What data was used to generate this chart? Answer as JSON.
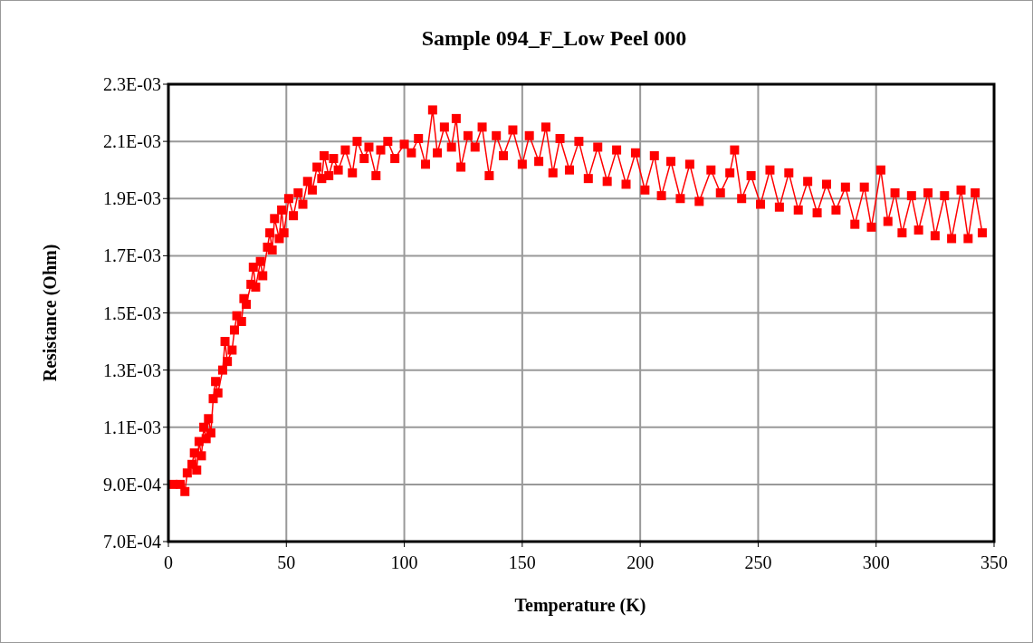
{
  "chart_data": {
    "type": "line",
    "title": "Sample 094_F_Low Peel 000",
    "xlabel": "Temperature (K)",
    "ylabel": "Resistance (Ohm)",
    "x": [
      2,
      5,
      7,
      8,
      10,
      11,
      12,
      13,
      14,
      15,
      16,
      17,
      18,
      19,
      20,
      21,
      23,
      24,
      25,
      27,
      28,
      29,
      31,
      32,
      33,
      35,
      36,
      37,
      39,
      40,
      42,
      43,
      44,
      45,
      47,
      48,
      49,
      51,
      53,
      55,
      57,
      59,
      61,
      63,
      65,
      66,
      68,
      70,
      72,
      75,
      78,
      80,
      83,
      85,
      88,
      90,
      93,
      96,
      100,
      103,
      106,
      109,
      112,
      114,
      117,
      120,
      122,
      124,
      127,
      130,
      133,
      136,
      139,
      142,
      146,
      150,
      153,
      157,
      160,
      163,
      166,
      170,
      174,
      178,
      182,
      186,
      190,
      194,
      198,
      202,
      206,
      209,
      213,
      217,
      221,
      225,
      230,
      234,
      238,
      240,
      243,
      247,
      251,
      255,
      259,
      263,
      267,
      271,
      275,
      279,
      283,
      287,
      291,
      295,
      298,
      302,
      305,
      308,
      311,
      315,
      318,
      322,
      325,
      329,
      332,
      336,
      339,
      342,
      345
    ],
    "series": [
      {
        "color": "#ff0000",
        "values": [
          0.0009,
          0.0009,
          0.000875,
          0.00094,
          0.00097,
          0.00101,
          0.00095,
          0.00105,
          0.001,
          0.0011,
          0.00106,
          0.00113,
          0.00108,
          0.0012,
          0.00126,
          0.00122,
          0.0013,
          0.0014,
          0.00133,
          0.00137,
          0.00144,
          0.00149,
          0.00147,
          0.00155,
          0.00153,
          0.0016,
          0.00166,
          0.00159,
          0.00168,
          0.00163,
          0.00173,
          0.00178,
          0.00172,
          0.00183,
          0.00176,
          0.00186,
          0.00178,
          0.0019,
          0.00184,
          0.00192,
          0.00188,
          0.00196,
          0.00193,
          0.00201,
          0.00197,
          0.00205,
          0.00198,
          0.00204,
          0.002,
          0.00207,
          0.00199,
          0.0021,
          0.00204,
          0.00208,
          0.00198,
          0.00207,
          0.0021,
          0.00204,
          0.00209,
          0.00206,
          0.00211,
          0.00202,
          0.00221,
          0.00206,
          0.00215,
          0.00208,
          0.00218,
          0.00201,
          0.00212,
          0.00208,
          0.00215,
          0.00198,
          0.00212,
          0.00205,
          0.00214,
          0.00202,
          0.00212,
          0.00203,
          0.00215,
          0.00199,
          0.00211,
          0.002,
          0.0021,
          0.00197,
          0.00208,
          0.00196,
          0.00207,
          0.00195,
          0.00206,
          0.00193,
          0.00205,
          0.00191,
          0.00203,
          0.0019,
          0.00202,
          0.00189,
          0.002,
          0.00192,
          0.00199,
          0.00207,
          0.0019,
          0.00198,
          0.00188,
          0.002,
          0.00187,
          0.00199,
          0.00186,
          0.00196,
          0.00185,
          0.00195,
          0.00186,
          0.00194,
          0.00181,
          0.00194,
          0.0018,
          0.002,
          0.00182,
          0.00192,
          0.00178,
          0.00191,
          0.00179,
          0.00192,
          0.00177,
          0.00191,
          0.00176,
          0.00193,
          0.00176,
          0.00192,
          0.00178
        ]
      }
    ],
    "xlim": [
      0,
      350
    ],
    "xticks": [
      0,
      50,
      100,
      150,
      200,
      250,
      300,
      350
    ],
    "ylim": [
      0.0007,
      0.0023
    ],
    "yticks": [
      {
        "value": 0.0007,
        "label": "7.0E-04"
      },
      {
        "value": 0.0009,
        "label": "9.0E-04"
      },
      {
        "value": 0.0011,
        "label": "1.1E-03"
      },
      {
        "value": 0.0013,
        "label": "1.3E-03"
      },
      {
        "value": 0.0015,
        "label": "1.5E-03"
      },
      {
        "value": 0.0017,
        "label": "1.7E-03"
      },
      {
        "value": 0.0019,
        "label": "1.9E-03"
      },
      {
        "value": 0.0021,
        "label": "2.1E-03"
      },
      {
        "value": 0.0023,
        "label": "2.3E-03"
      }
    ],
    "grid": true,
    "marker": "square",
    "line_style": "solid"
  }
}
